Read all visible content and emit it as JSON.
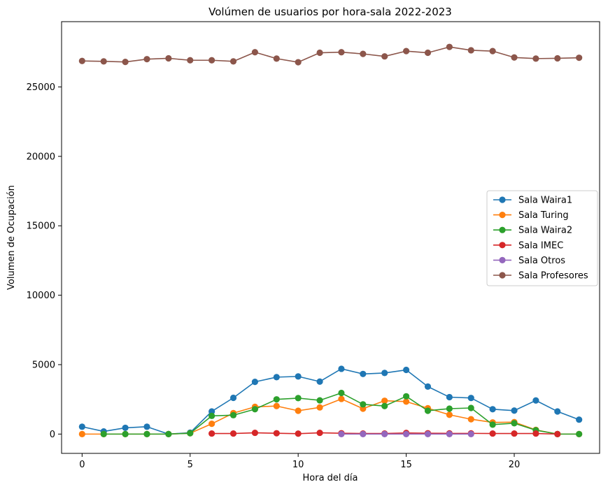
{
  "chart_data": {
    "type": "line",
    "title": "Volúmen de usuarios por hora-sala  2022-2023",
    "xlabel": "Hora del día",
    "ylabel": "Volumen de Ocupación",
    "xlim": [
      -0.95,
      23.95
    ],
    "ylim": [
      -1390,
      29700
    ],
    "xticks": [
      0,
      5,
      10,
      15,
      20
    ],
    "yticks": [
      0,
      5000,
      10000,
      15000,
      20000,
      25000
    ],
    "grid": false,
    "legend_position": "center-right",
    "series": [
      {
        "name": "Sala Waira1",
        "color": "#1f77b4",
        "x": [
          0,
          1,
          2,
          3,
          4,
          5,
          6,
          7,
          8,
          9,
          10,
          11,
          12,
          13,
          14,
          15,
          16,
          17,
          18,
          19,
          20,
          21,
          22,
          23
        ],
        "values": [
          530,
          190,
          450,
          530,
          0,
          100,
          1630,
          2610,
          3760,
          4100,
          4150,
          3780,
          4700,
          4330,
          4400,
          4620,
          3420,
          2660,
          2600,
          1790,
          1690,
          2420,
          1630,
          1040
        ]
      },
      {
        "name": "Sala Turing",
        "color": "#ff7f0e",
        "x": [
          0,
          1,
          2,
          3,
          4,
          5,
          6,
          7,
          8,
          9,
          10,
          11,
          12,
          13,
          14,
          15,
          16,
          17,
          18,
          19,
          20,
          21,
          22,
          23
        ],
        "values": [
          0,
          0,
          0,
          0,
          0,
          60,
          740,
          1510,
          1960,
          2020,
          1680,
          1920,
          2530,
          1830,
          2400,
          2340,
          1860,
          1390,
          1070,
          840,
          860,
          300,
          0,
          0
        ]
      },
      {
        "name": "Sala Waira2",
        "color": "#2ca02c",
        "x": [
          1,
          2,
          3,
          4,
          5,
          6,
          7,
          8,
          9,
          10,
          11,
          12,
          13,
          14,
          15,
          16,
          17,
          18,
          19,
          20,
          21,
          22,
          23
        ],
        "values": [
          0,
          0,
          0,
          0,
          60,
          1310,
          1360,
          1790,
          2500,
          2590,
          2430,
          2960,
          2140,
          2020,
          2720,
          1680,
          1830,
          1880,
          680,
          780,
          280,
          0,
          0
        ]
      },
      {
        "name": "Sala IMEC",
        "color": "#d62728",
        "x": [
          6,
          7,
          8,
          9,
          10,
          11,
          12,
          13,
          14,
          15,
          16,
          17,
          18,
          19,
          20,
          21,
          22
        ],
        "values": [
          40,
          40,
          90,
          60,
          30,
          90,
          60,
          40,
          40,
          80,
          60,
          50,
          50,
          40,
          40,
          40,
          0
        ]
      },
      {
        "name": "Sala Otros",
        "color": "#9467bd",
        "x": [
          12,
          13,
          14,
          15,
          16,
          17,
          18
        ],
        "values": [
          0,
          0,
          0,
          0,
          0,
          0,
          0
        ]
      },
      {
        "name": "Sala Profesores",
        "color": "#8c564b",
        "x": [
          0,
          1,
          2,
          3,
          4,
          5,
          6,
          7,
          8,
          9,
          10,
          11,
          12,
          13,
          14,
          15,
          16,
          17,
          18,
          19,
          20,
          21,
          22,
          23
        ],
        "values": [
          26870,
          26840,
          26800,
          27000,
          27060,
          26920,
          26920,
          26840,
          27500,
          27040,
          26780,
          27460,
          27500,
          27380,
          27200,
          27580,
          27460,
          27880,
          27640,
          27580,
          27120,
          27040,
          27060,
          27100
        ]
      }
    ]
  }
}
